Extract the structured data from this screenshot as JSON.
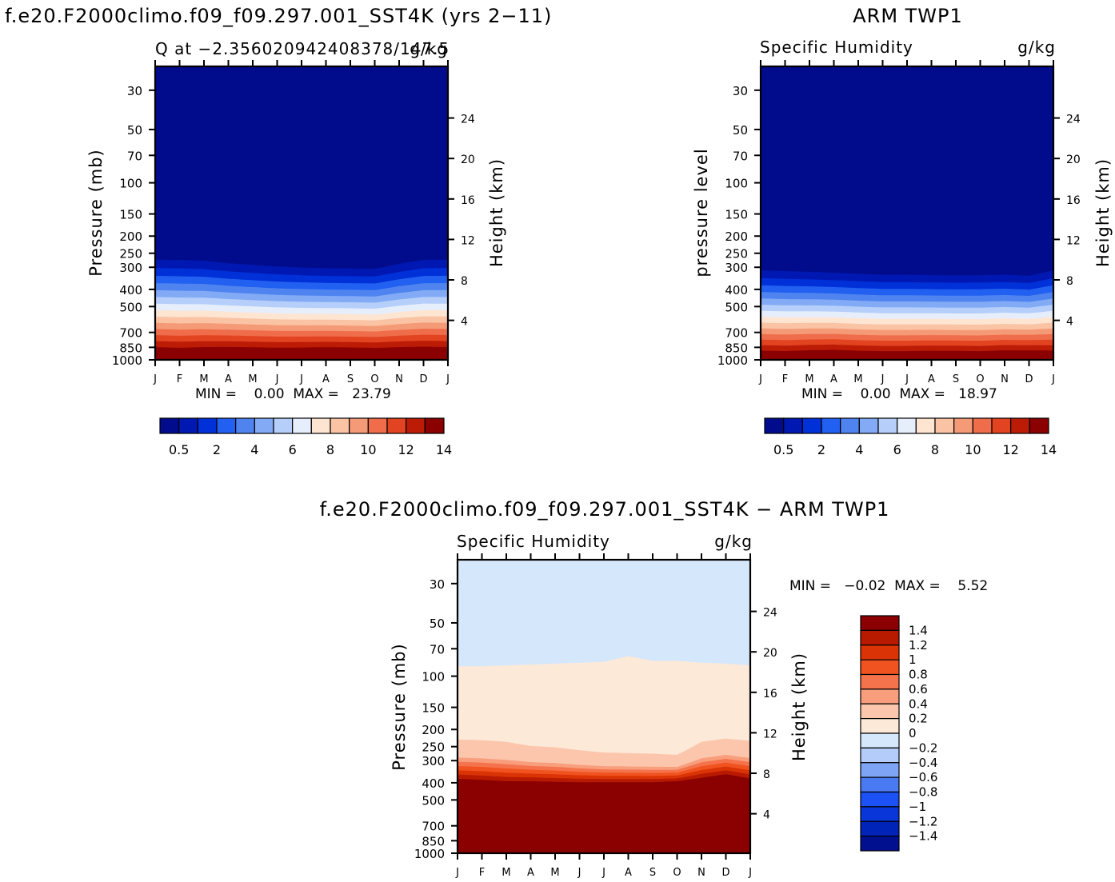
{
  "colors": {
    "seq14": [
      "#000c8b",
      "#0018b2",
      "#0030d8",
      "#2160f0",
      "#4f84f0",
      "#82aaf5",
      "#b5cffa",
      "#e6eefc",
      "#fde5d2",
      "#fac3a4",
      "#f59a76",
      "#ef6d4b",
      "#e24320",
      "#bc1c06",
      "#8b0000"
    ],
    "diff": [
      "#00108f",
      "#0024b8",
      "#0836d8",
      "#1c52f5",
      "#4a7af3",
      "#7ea4f5",
      "#b3ccfa",
      "#d5e7fb",
      "#fde9d8",
      "#fbc6ac",
      "#f89e7d",
      "#f5734c",
      "#f0531f",
      "#da3406",
      "#b81a00",
      "#8b0000"
    ]
  },
  "panels": {
    "model": {
      "run_title": "f.e20.F2000climo.f09_f09.297.001_SST4K (yrs 2−11)",
      "subtitle_left": "Q at −2.356020942408378/147.5",
      "subtitle_right": "g/kg",
      "left_axis_label": "Pressure (mb)",
      "right_axis_label": "Height (km)",
      "minmax": "MIN =    0.00  MAX =   23.79"
    },
    "obs": {
      "run_title": "ARM TWP1",
      "subtitle_left": "Specific Humidity",
      "subtitle_right": "g/kg",
      "left_axis_label": "pressure level",
      "right_axis_label": "Height (km)",
      "minmax": "MIN =    0.00  MAX =   18.97"
    },
    "diff": {
      "run_title": "f.e20.F2000climo.f09_f09.297.001_SST4K − ARM TWP1",
      "subtitle_left": "Specific Humidity",
      "subtitle_right": "g/kg",
      "left_axis_label": "Pressure (mb)",
      "right_axis_label": "Height (km)",
      "minmax": "MIN =   −0.02  MAX =    5.52"
    }
  },
  "chart_data": [
    {
      "type": "heatmap",
      "name": "model",
      "x_ticks": [
        "J",
        "F",
        "M",
        "A",
        "M",
        "J",
        "J",
        "A",
        "S",
        "O",
        "N",
        "D",
        "J"
      ],
      "y_ticks_pressure_mb": [
        30,
        50,
        70,
        100,
        150,
        200,
        250,
        300,
        400,
        500,
        700,
        850,
        1000
      ],
      "y_ticks_height_km": [
        24,
        20,
        16,
        12,
        8,
        4
      ],
      "ylim_pressure_mb": [
        22,
        1000
      ],
      "months": [
        0,
        1,
        2,
        3,
        4,
        5,
        6,
        7,
        8,
        9,
        10,
        11,
        12
      ],
      "q_dry_top_mb": [
        243,
        244,
        247,
        256,
        262,
        268,
        272,
        275,
        276,
        277,
        258,
        244,
        243
      ],
      "q_saturated_bottom_mb": [
        860,
        868,
        860,
        858,
        862,
        866,
        864,
        860,
        863,
        868,
        860,
        855,
        860
      ],
      "value_range": {
        "min": 0.0,
        "max": 23.79
      },
      "colorbar_labels": [
        "0.5",
        "2",
        "4",
        "6",
        "8",
        "10",
        "12",
        "14"
      ]
    },
    {
      "type": "heatmap",
      "name": "obs",
      "x_ticks": [
        "J",
        "F",
        "M",
        "A",
        "M",
        "J",
        "J",
        "A",
        "S",
        "O",
        "N",
        "D",
        "J"
      ],
      "y_ticks_pressure_mb": [
        30,
        50,
        70,
        100,
        150,
        200,
        250,
        300,
        400,
        500,
        700,
        850,
        1000
      ],
      "y_ticks_height_km": [
        24,
        20,
        16,
        12,
        8,
        4
      ],
      "ylim_pressure_mb": [
        22,
        1000
      ],
      "months": [
        0,
        1,
        2,
        3,
        4,
        5,
        6,
        7,
        8,
        9,
        10,
        11,
        12
      ],
      "q_dry_top_mb": [
        282,
        285,
        288,
        292,
        296,
        300,
        300,
        302,
        303,
        302,
        300,
        305,
        282
      ],
      "q_saturated_bottom_mb": [
        900,
        905,
        895,
        890,
        900,
        905,
        905,
        900,
        902,
        905,
        895,
        895,
        900
      ],
      "value_range": {
        "min": 0.0,
        "max": 18.97
      },
      "colorbar_labels": [
        "0.5",
        "2",
        "4",
        "6",
        "8",
        "10",
        "12",
        "14"
      ]
    },
    {
      "type": "heatmap",
      "name": "difference",
      "x_ticks": [
        "J",
        "F",
        "M",
        "A",
        "M",
        "J",
        "J",
        "A",
        "S",
        "O",
        "N",
        "D",
        "J"
      ],
      "y_ticks_pressure_mb": [
        30,
        50,
        70,
        100,
        150,
        200,
        250,
        300,
        400,
        500,
        700,
        850,
        1000
      ],
      "y_ticks_height_km": [
        24,
        20,
        16,
        12,
        8,
        4
      ],
      "ylim_pressure_mb": [
        22,
        1000
      ],
      "months": [
        0,
        1,
        2,
        3,
        4,
        5,
        6,
        7,
        8,
        9,
        10,
        11,
        12
      ],
      "zero_contour_mb": [
        88,
        88,
        87,
        86,
        85,
        84,
        83,
        77,
        82,
        82,
        84,
        85,
        87
      ],
      "contour_0p2_mb": [
        228,
        230,
        235,
        248,
        252,
        262,
        270,
        272,
        274,
        278,
        235,
        225,
        232
      ],
      "contour_1p4_mb": [
        380,
        385,
        392,
        392,
        395,
        397,
        397,
        397,
        397,
        392,
        375,
        358,
        378
      ],
      "value_range": {
        "min": -0.02,
        "max": 5.52
      },
      "colorbar_labels": [
        "1.4",
        "1.2",
        "1",
        "0.8",
        "0.6",
        "0.4",
        "0.2",
        "0",
        "−0.2",
        "−0.4",
        "−0.6",
        "−0.8",
        "−1",
        "−1.2",
        "−1.4"
      ]
    }
  ]
}
